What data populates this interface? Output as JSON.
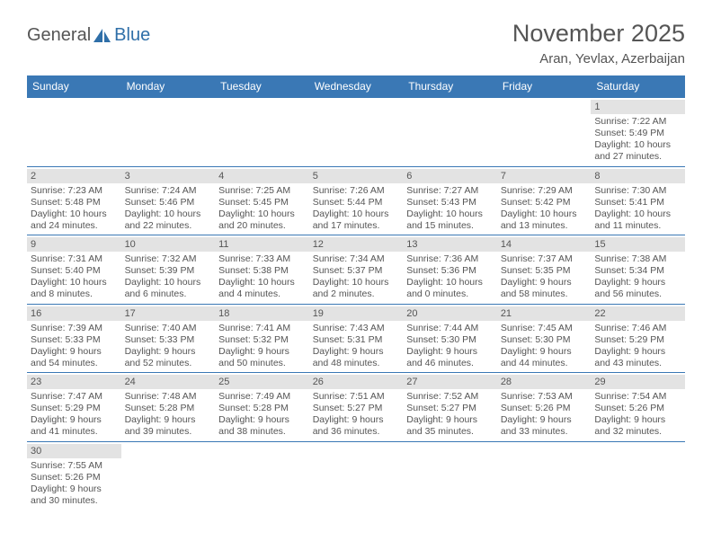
{
  "logo": {
    "general": "General",
    "blue": "Blue"
  },
  "title": "November 2025",
  "location": "Aran, Yevlax, Azerbaijan",
  "colors": {
    "header_bg": "#3a78b5",
    "header_text": "#ffffff",
    "daynum_bg": "#e3e3e3",
    "text": "#555555",
    "rule": "#3a78b5",
    "logo_blue": "#2f6fa8"
  },
  "weekdays": [
    "Sunday",
    "Monday",
    "Tuesday",
    "Wednesday",
    "Thursday",
    "Friday",
    "Saturday"
  ],
  "weeks": [
    [
      null,
      null,
      null,
      null,
      null,
      null,
      {
        "n": "1",
        "sr": "Sunrise: 7:22 AM",
        "ss": "Sunset: 5:49 PM",
        "dl1": "Daylight: 10 hours",
        "dl2": "and 27 minutes."
      }
    ],
    [
      {
        "n": "2",
        "sr": "Sunrise: 7:23 AM",
        "ss": "Sunset: 5:48 PM",
        "dl1": "Daylight: 10 hours",
        "dl2": "and 24 minutes."
      },
      {
        "n": "3",
        "sr": "Sunrise: 7:24 AM",
        "ss": "Sunset: 5:46 PM",
        "dl1": "Daylight: 10 hours",
        "dl2": "and 22 minutes."
      },
      {
        "n": "4",
        "sr": "Sunrise: 7:25 AM",
        "ss": "Sunset: 5:45 PM",
        "dl1": "Daylight: 10 hours",
        "dl2": "and 20 minutes."
      },
      {
        "n": "5",
        "sr": "Sunrise: 7:26 AM",
        "ss": "Sunset: 5:44 PM",
        "dl1": "Daylight: 10 hours",
        "dl2": "and 17 minutes."
      },
      {
        "n": "6",
        "sr": "Sunrise: 7:27 AM",
        "ss": "Sunset: 5:43 PM",
        "dl1": "Daylight: 10 hours",
        "dl2": "and 15 minutes."
      },
      {
        "n": "7",
        "sr": "Sunrise: 7:29 AM",
        "ss": "Sunset: 5:42 PM",
        "dl1": "Daylight: 10 hours",
        "dl2": "and 13 minutes."
      },
      {
        "n": "8",
        "sr": "Sunrise: 7:30 AM",
        "ss": "Sunset: 5:41 PM",
        "dl1": "Daylight: 10 hours",
        "dl2": "and 11 minutes."
      }
    ],
    [
      {
        "n": "9",
        "sr": "Sunrise: 7:31 AM",
        "ss": "Sunset: 5:40 PM",
        "dl1": "Daylight: 10 hours",
        "dl2": "and 8 minutes."
      },
      {
        "n": "10",
        "sr": "Sunrise: 7:32 AM",
        "ss": "Sunset: 5:39 PM",
        "dl1": "Daylight: 10 hours",
        "dl2": "and 6 minutes."
      },
      {
        "n": "11",
        "sr": "Sunrise: 7:33 AM",
        "ss": "Sunset: 5:38 PM",
        "dl1": "Daylight: 10 hours",
        "dl2": "and 4 minutes."
      },
      {
        "n": "12",
        "sr": "Sunrise: 7:34 AM",
        "ss": "Sunset: 5:37 PM",
        "dl1": "Daylight: 10 hours",
        "dl2": "and 2 minutes."
      },
      {
        "n": "13",
        "sr": "Sunrise: 7:36 AM",
        "ss": "Sunset: 5:36 PM",
        "dl1": "Daylight: 10 hours",
        "dl2": "and 0 minutes."
      },
      {
        "n": "14",
        "sr": "Sunrise: 7:37 AM",
        "ss": "Sunset: 5:35 PM",
        "dl1": "Daylight: 9 hours",
        "dl2": "and 58 minutes."
      },
      {
        "n": "15",
        "sr": "Sunrise: 7:38 AM",
        "ss": "Sunset: 5:34 PM",
        "dl1": "Daylight: 9 hours",
        "dl2": "and 56 minutes."
      }
    ],
    [
      {
        "n": "16",
        "sr": "Sunrise: 7:39 AM",
        "ss": "Sunset: 5:33 PM",
        "dl1": "Daylight: 9 hours",
        "dl2": "and 54 minutes."
      },
      {
        "n": "17",
        "sr": "Sunrise: 7:40 AM",
        "ss": "Sunset: 5:33 PM",
        "dl1": "Daylight: 9 hours",
        "dl2": "and 52 minutes."
      },
      {
        "n": "18",
        "sr": "Sunrise: 7:41 AM",
        "ss": "Sunset: 5:32 PM",
        "dl1": "Daylight: 9 hours",
        "dl2": "and 50 minutes."
      },
      {
        "n": "19",
        "sr": "Sunrise: 7:43 AM",
        "ss": "Sunset: 5:31 PM",
        "dl1": "Daylight: 9 hours",
        "dl2": "and 48 minutes."
      },
      {
        "n": "20",
        "sr": "Sunrise: 7:44 AM",
        "ss": "Sunset: 5:30 PM",
        "dl1": "Daylight: 9 hours",
        "dl2": "and 46 minutes."
      },
      {
        "n": "21",
        "sr": "Sunrise: 7:45 AM",
        "ss": "Sunset: 5:30 PM",
        "dl1": "Daylight: 9 hours",
        "dl2": "and 44 minutes."
      },
      {
        "n": "22",
        "sr": "Sunrise: 7:46 AM",
        "ss": "Sunset: 5:29 PM",
        "dl1": "Daylight: 9 hours",
        "dl2": "and 43 minutes."
      }
    ],
    [
      {
        "n": "23",
        "sr": "Sunrise: 7:47 AM",
        "ss": "Sunset: 5:29 PM",
        "dl1": "Daylight: 9 hours",
        "dl2": "and 41 minutes."
      },
      {
        "n": "24",
        "sr": "Sunrise: 7:48 AM",
        "ss": "Sunset: 5:28 PM",
        "dl1": "Daylight: 9 hours",
        "dl2": "and 39 minutes."
      },
      {
        "n": "25",
        "sr": "Sunrise: 7:49 AM",
        "ss": "Sunset: 5:28 PM",
        "dl1": "Daylight: 9 hours",
        "dl2": "and 38 minutes."
      },
      {
        "n": "26",
        "sr": "Sunrise: 7:51 AM",
        "ss": "Sunset: 5:27 PM",
        "dl1": "Daylight: 9 hours",
        "dl2": "and 36 minutes."
      },
      {
        "n": "27",
        "sr": "Sunrise: 7:52 AM",
        "ss": "Sunset: 5:27 PM",
        "dl1": "Daylight: 9 hours",
        "dl2": "and 35 minutes."
      },
      {
        "n": "28",
        "sr": "Sunrise: 7:53 AM",
        "ss": "Sunset: 5:26 PM",
        "dl1": "Daylight: 9 hours",
        "dl2": "and 33 minutes."
      },
      {
        "n": "29",
        "sr": "Sunrise: 7:54 AM",
        "ss": "Sunset: 5:26 PM",
        "dl1": "Daylight: 9 hours",
        "dl2": "and 32 minutes."
      }
    ],
    [
      {
        "n": "30",
        "sr": "Sunrise: 7:55 AM",
        "ss": "Sunset: 5:26 PM",
        "dl1": "Daylight: 9 hours",
        "dl2": "and 30 minutes."
      },
      null,
      null,
      null,
      null,
      null,
      null
    ]
  ]
}
